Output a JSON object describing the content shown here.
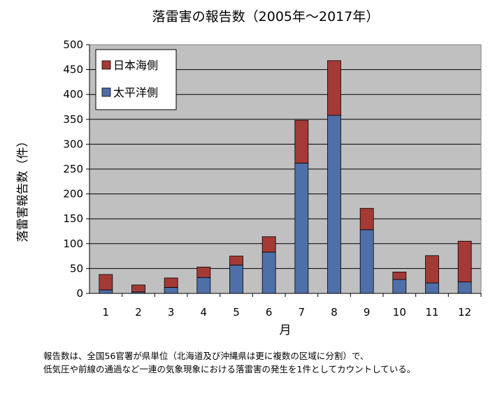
{
  "chart_data": {
    "type": "bar",
    "stacked": true,
    "title": "落雷害の報告数（2005年～2017年）",
    "xlabel": "月",
    "ylabel": "落雷害報告数（件）",
    "categories": [
      "1",
      "2",
      "3",
      "4",
      "5",
      "6",
      "7",
      "8",
      "9",
      "10",
      "11",
      "12"
    ],
    "series": [
      {
        "name": "太平洋側",
        "color": "#4F6FA8",
        "values": [
          7,
          3,
          12,
          32,
          57,
          83,
          262,
          358,
          128,
          28,
          21,
          23
        ]
      },
      {
        "name": "日本海側",
        "color": "#A33A36",
        "values": [
          31,
          14,
          19,
          21,
          18,
          31,
          86,
          110,
          43,
          15,
          55,
          82
        ]
      }
    ],
    "ylim": [
      0,
      500
    ],
    "yticks": [
      "0",
      "50",
      "100",
      "150",
      "200",
      "250",
      "300",
      "350",
      "400",
      "450",
      "500"
    ],
    "grid": true,
    "legend_position": "top-left",
    "plot_background": "#C0C0C0"
  },
  "footnote": {
    "line1": "報告数は、全国56官署が県単位（北海道及び沖縄県は更に複数の区域に分割）で、",
    "line2": "低気圧や前線の通過など一連の気象現象における落雷害の発生を1件としてカウントしている。"
  }
}
